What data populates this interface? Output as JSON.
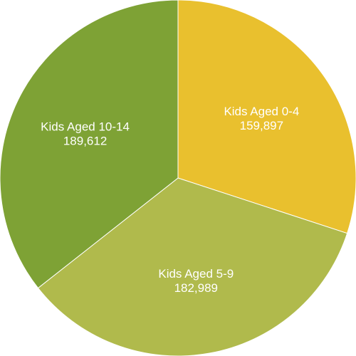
{
  "chart_data": {
    "type": "pie",
    "title": "",
    "start_angle_deg": 0,
    "direction": "clockwise",
    "slices": [
      {
        "label": "Kids Aged 0-4",
        "value": 159897,
        "value_text": "159,897",
        "color": "#E9C02E"
      },
      {
        "label": "Kids Aged 5-9",
        "value": 182989,
        "value_text": "182,989",
        "color": "#B0BA4C"
      },
      {
        "label": "Kids Aged 10-14",
        "value": 189612,
        "value_text": "189,612",
        "color": "#7EA235"
      }
    ]
  }
}
